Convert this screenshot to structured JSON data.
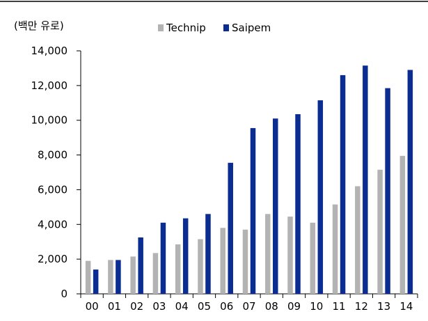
{
  "chart_data": {
    "type": "bar",
    "unit_label": "(백만 유로)",
    "categories": [
      "00",
      "01",
      "02",
      "03",
      "04",
      "05",
      "06",
      "07",
      "08",
      "09",
      "10",
      "11",
      "12",
      "13",
      "14"
    ],
    "series": [
      {
        "name": "Technip",
        "color": "#b3b3b3",
        "values": [
          1900,
          1950,
          2150,
          2350,
          2850,
          3150,
          3800,
          3700,
          4600,
          4450,
          4100,
          5150,
          6200,
          7150,
          7950
        ]
      },
      {
        "name": "Saipem",
        "color": "#0b2c91",
        "values": [
          1400,
          1950,
          3250,
          4100,
          4350,
          4600,
          7550,
          9550,
          10100,
          10350,
          11150,
          12600,
          13150,
          11850,
          12900
        ]
      }
    ],
    "yticks": [
      "0",
      "2,000",
      "4,000",
      "6,000",
      "8,000",
      "10,000",
      "12,000",
      "14,000"
    ],
    "ylim": [
      0,
      14000
    ],
    "grid": false,
    "legend_position": "top"
  }
}
